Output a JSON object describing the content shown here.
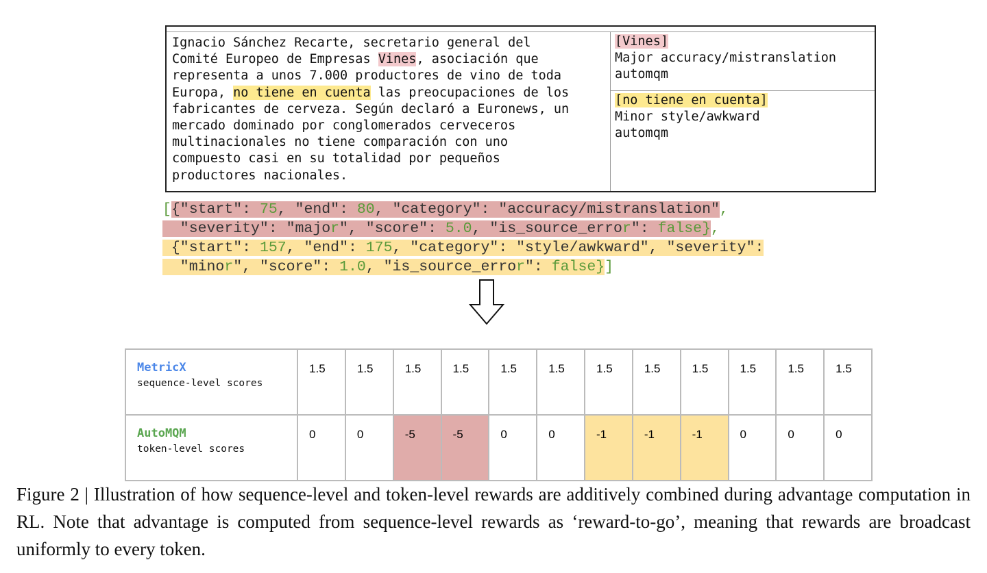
{
  "source": {
    "before1": "Ignacio Sánchez Recarte, secretario general del\nComité Europeo de Empresas ",
    "err1": "Vines",
    "between": ", asociación que\nrepresenta a unos 7.000 productores de vino de toda\nEuropa, ",
    "err2": "no tiene en cuenta",
    "after": " las preocupaciones de los\nfabricantes de cerveza. Según declaró a Euronews, un\nmercado dominado por conglomerados cerveceros\nmultinacionales no tiene comparación con uno\ncompuesto casi en su totalidad por pequeños\nproductores nacionales."
  },
  "annotations": [
    {
      "span": "[Vines]",
      "desc": "Major accuracy/mistranslation",
      "source": "automqm",
      "color": "#f3c9cc"
    },
    {
      "span": "[no tiene en cuenta]",
      "desc": "Minor style/awkward",
      "source": "automqm",
      "color": "#fde98f"
    }
  ],
  "json_lines": [
    {
      "hl": "",
      "tokens": [
        [
          "[",
          "g"
        ]
      ]
    },
    {
      "hl": "r",
      "tokens": [
        [
          "{\"start\": ",
          ""
        ],
        [
          "75",
          "g"
        ],
        [
          ", \"end\": ",
          ""
        ],
        [
          "80",
          "g"
        ],
        [
          ", \"category\": \"accuracy/mistranslation\"",
          ""
        ],
        [
          ",",
          ""
        ]
      ]
    },
    {
      "hl": "r",
      "tokens": [
        [
          "  \"severity\": \"majo",
          ""
        ],
        [
          "r",
          "g"
        ],
        [
          "\", \"score\": ",
          ""
        ],
        [
          "5.0",
          "g"
        ],
        [
          ", \"is_source_erro",
          ""
        ],
        [
          "r",
          "g"
        ],
        [
          "\": ",
          ""
        ],
        [
          "false}",
          "g"
        ]
      ]
    },
    {
      "hl": "y",
      "tokens": [
        [
          " {\"start\": ",
          ""
        ],
        [
          "157",
          "g"
        ],
        [
          ", \"end\": ",
          ""
        ],
        [
          "175",
          "g"
        ],
        [
          ", \"category\": \"style/awkward\", \"severity\":",
          ""
        ]
      ]
    },
    {
      "hl": "y",
      "tokens": [
        [
          "  \"mino",
          ""
        ],
        [
          "r",
          "g"
        ],
        [
          "\", \"score\": ",
          ""
        ],
        [
          "1.0",
          "g"
        ],
        [
          ", \"is_source_erro",
          ""
        ],
        [
          "r",
          "g"
        ],
        [
          "\": ",
          ""
        ],
        [
          "false}",
          "g"
        ]
      ]
    }
  ],
  "json_tail": {
    "line1": ",",
    "line4": "]"
  },
  "table": {
    "rows": [
      {
        "name": "MetricX",
        "sub": "sequence-level scores",
        "color": "#4a86e8",
        "values": [
          "1.5",
          "1.5",
          "1.5",
          "1.5",
          "1.5",
          "1.5",
          "1.5",
          "1.5",
          "1.5",
          "1.5",
          "1.5",
          "1.5"
        ],
        "highlights": [
          "",
          "",
          "",
          "",
          "",
          "",
          "",
          "",
          "",
          "",
          "",
          ""
        ]
      },
      {
        "name": "AutoMQM",
        "sub": "token-level scores",
        "color": "#5aa650",
        "values": [
          "0",
          "0",
          "-5",
          "-5",
          "0",
          "0",
          "-1",
          "-1",
          "-1",
          "0",
          "0",
          "0"
        ],
        "highlights": [
          "",
          "",
          "r",
          "r",
          "",
          "",
          "y",
          "y",
          "y",
          "",
          "",
          ""
        ]
      }
    ]
  },
  "caption": "Figure 2 | Illustration of how sequence-level and token-level rewards are additively combined during advantage computation in RL. Note that advantage is computed from sequence-level rewards as ‘reward-to-go’, meaning that rewards are broadcast uniformly to every token."
}
